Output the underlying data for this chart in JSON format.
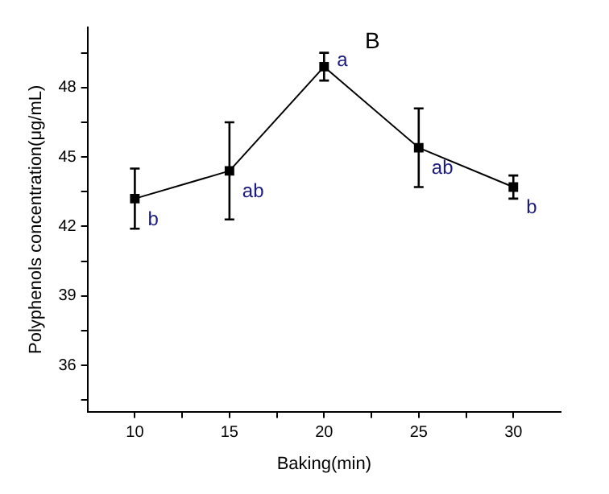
{
  "chart_data": {
    "type": "line",
    "title": "B",
    "xlabel": "Baking(min)",
    "ylabel": "Polyphenols concentration(μg/mL)",
    "x": [
      10,
      15,
      20,
      25,
      30
    ],
    "series": [
      {
        "color": "#000000",
        "values": [
          43.2,
          44.4,
          48.9,
          45.4,
          43.7
        ],
        "errors": [
          1.3,
          2.1,
          0.6,
          1.7,
          0.5
        ]
      }
    ],
    "xlim": [
      7.5,
      32.5
    ],
    "xticks": [
      10,
      {
        "value": 12.5,
        "label": null
      },
      15,
      {
        "value": 17.5,
        "label": null
      },
      20,
      {
        "value": 22.5,
        "label": null
      },
      25,
      {
        "value": 27.5,
        "label": null
      },
      30
    ],
    "ylim": [
      34,
      50.6
    ],
    "yticks": [
      {
        "value": 34.5,
        "label": null
      },
      36,
      {
        "value": 37.5,
        "label": null
      },
      39,
      {
        "value": 40.5,
        "label": null
      },
      42,
      {
        "value": 43.5,
        "label": null
      },
      45,
      {
        "value": 46.5,
        "label": null
      },
      48,
      {
        "value": 49.5,
        "label": null
      }
    ],
    "annotations": [
      {
        "text": "b",
        "x": 10,
        "y": 43.2
      },
      {
        "text": "ab",
        "x": 15,
        "y": 44.4
      },
      {
        "text": "a",
        "x": 20,
        "y": 48.9
      },
      {
        "text": "ab",
        "x": 25,
        "y": 45.4
      },
      {
        "text": "b",
        "x": 30,
        "y": 43.7
      }
    ],
    "marker": "square",
    "grid": false,
    "legend": false
  }
}
